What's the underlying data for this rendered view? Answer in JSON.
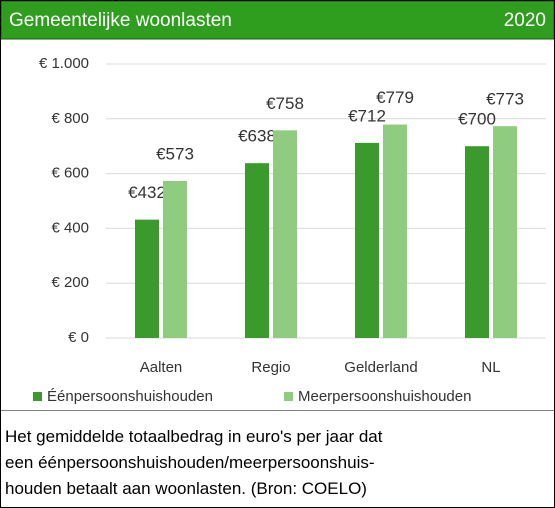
{
  "chart_data": {
    "type": "bar",
    "title": "Gemeentelijke woonlasten",
    "subtitle": "2020",
    "categories": [
      "Aalten",
      "Regio",
      "Gelderland",
      "NL"
    ],
    "series": [
      {
        "name": "Éénpersoonshuishouden",
        "color": "#3a9a2c",
        "values": [
          432,
          638,
          712,
          700
        ],
        "value_labels": [
          "€432",
          "€638",
          "€712",
          "€700"
        ]
      },
      {
        "name": "Meerpersoonshuishouden",
        "color": "#8fcc80",
        "values": [
          573,
          758,
          779,
          773
        ],
        "value_labels": [
          "€573",
          "€758",
          "€779",
          "€773"
        ]
      }
    ],
    "ylim": [
      0,
      1000
    ],
    "yticks": [
      {
        "value": 0,
        "label": "€ 0"
      },
      {
        "value": 200,
        "label": "€ 200"
      },
      {
        "value": 400,
        "label": "€ 400"
      },
      {
        "value": 600,
        "label": "€ 600"
      },
      {
        "value": 800,
        "label": "€ 800"
      },
      {
        "value": 1000,
        "label": "€ 1.000"
      }
    ],
    "grid": true,
    "note": [
      "Het gemiddelde totaalbedrag in euro's per jaar dat",
      "een éénpersoonshuishouden/meerpersoonshuis-",
      "houden betaalt aan woonlasten. (Bron: COELO)"
    ]
  }
}
